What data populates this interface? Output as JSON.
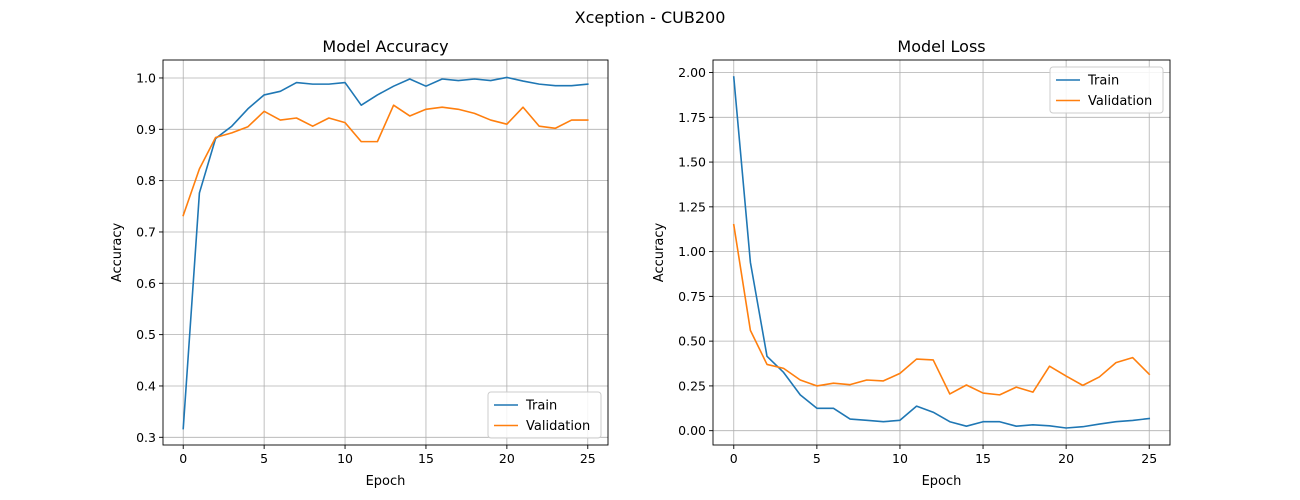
{
  "figure": {
    "title": "Xception - CUB200"
  },
  "colors": {
    "train": "#1f77b4",
    "validation": "#ff7f0e"
  },
  "chart_data": [
    {
      "type": "line",
      "title": "Model Accuracy",
      "xlabel": "Epoch",
      "ylabel": "Accuracy",
      "xlim": [
        -1.25,
        26.25
      ],
      "ylim": [
        0.285,
        1.035
      ],
      "xticks": [
        0,
        5,
        10,
        15,
        20,
        25
      ],
      "yticks": [
        0.3,
        0.4,
        0.5,
        0.6,
        0.7,
        0.8,
        0.9,
        1.0
      ],
      "ytick_labels": [
        "0.3",
        "0.4",
        "0.5",
        "0.6",
        "0.7",
        "0.8",
        "0.9",
        "1.0"
      ],
      "grid": true,
      "legend_position": "lower-right",
      "x": [
        0,
        1,
        2,
        3,
        4,
        5,
        6,
        7,
        8,
        9,
        10,
        11,
        12,
        13,
        14,
        15,
        16,
        17,
        18,
        19,
        20,
        21,
        22,
        23,
        24,
        25
      ],
      "series": [
        {
          "name": "Train",
          "color_key": "train",
          "values": [
            0.317,
            0.776,
            0.882,
            0.906,
            0.94,
            0.967,
            0.974,
            0.991,
            0.988,
            0.988,
            0.991,
            0.947,
            0.967,
            0.984,
            0.998,
            0.984,
            0.998,
            0.995,
            0.998,
            0.995,
            1.001,
            0.994,
            0.988,
            0.985,
            0.985,
            0.988
          ]
        },
        {
          "name": "Validation",
          "color_key": "validation",
          "values": [
            0.732,
            0.823,
            0.884,
            0.893,
            0.905,
            0.935,
            0.918,
            0.922,
            0.906,
            0.922,
            0.913,
            0.876,
            0.876,
            0.947,
            0.926,
            0.939,
            0.943,
            0.939,
            0.931,
            0.918,
            0.91,
            0.943,
            0.906,
            0.902,
            0.918,
            0.918
          ]
        }
      ]
    },
    {
      "type": "line",
      "title": "Model Loss",
      "xlabel": "Epoch",
      "ylabel": "Accuracy",
      "xlim": [
        -1.25,
        26.25
      ],
      "ylim": [
        -0.08,
        2.07
      ],
      "xticks": [
        0,
        5,
        10,
        15,
        20,
        25
      ],
      "yticks": [
        0.0,
        0.25,
        0.5,
        0.75,
        1.0,
        1.25,
        1.5,
        1.75,
        2.0
      ],
      "ytick_labels": [
        "0.00",
        "0.25",
        "0.50",
        "0.75",
        "1.00",
        "1.25",
        "1.50",
        "1.75",
        "2.00"
      ],
      "grid": true,
      "legend_position": "top-right",
      "x": [
        0,
        1,
        2,
        3,
        4,
        5,
        6,
        7,
        8,
        9,
        10,
        11,
        12,
        13,
        14,
        15,
        16,
        17,
        18,
        19,
        20,
        21,
        22,
        23,
        24,
        25
      ],
      "series": [
        {
          "name": "Train",
          "color_key": "train",
          "values": [
            1.975,
            0.94,
            0.415,
            0.325,
            0.2,
            0.125,
            0.125,
            0.065,
            0.058,
            0.05,
            0.058,
            0.137,
            0.103,
            0.05,
            0.025,
            0.05,
            0.05,
            0.025,
            0.033,
            0.027,
            0.015,
            0.022,
            0.037,
            0.05,
            0.057,
            0.068
          ]
        },
        {
          "name": "Validation",
          "color_key": "validation",
          "values": [
            1.15,
            0.56,
            0.37,
            0.348,
            0.283,
            0.25,
            0.265,
            0.257,
            0.283,
            0.278,
            0.32,
            0.4,
            0.395,
            0.205,
            0.255,
            0.21,
            0.2,
            0.243,
            0.215,
            0.36,
            0.305,
            0.253,
            0.3,
            0.38,
            0.408,
            0.315
          ]
        }
      ]
    }
  ]
}
